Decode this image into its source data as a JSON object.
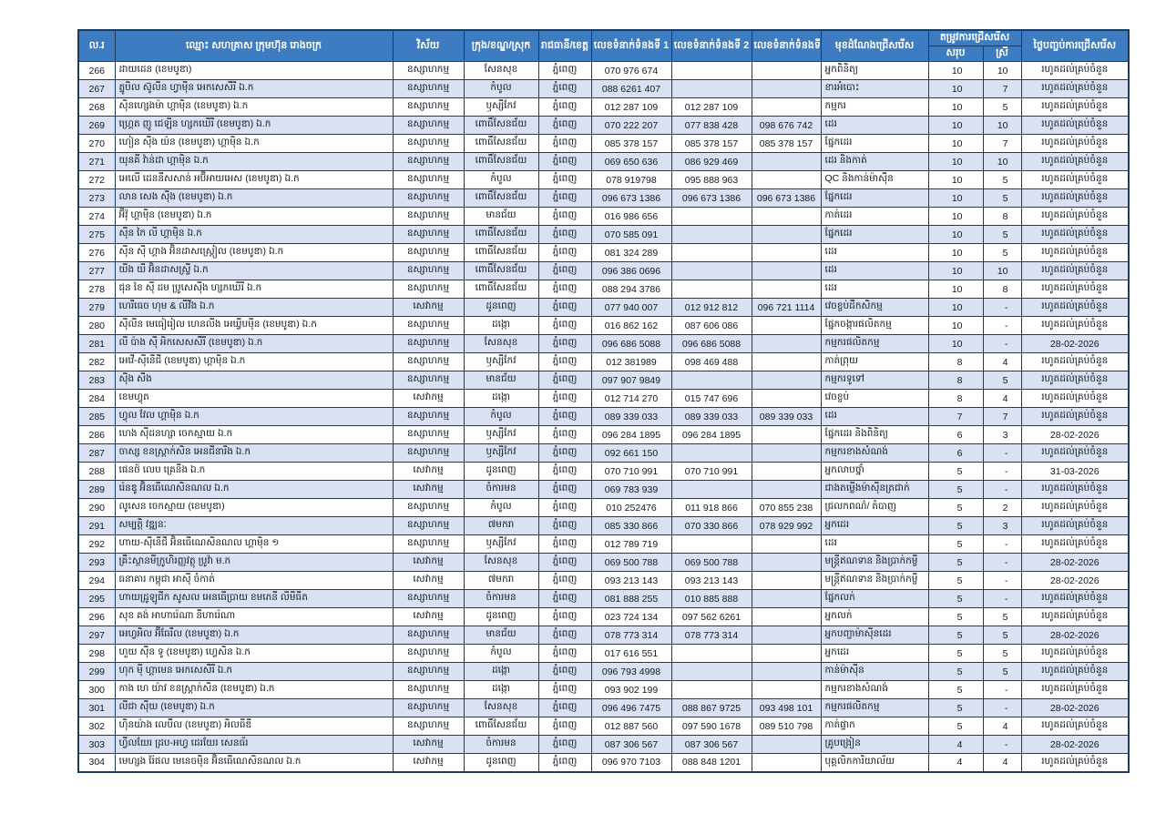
{
  "colors": {
    "header_bg": "#3E7CC1",
    "header_text": "#FFFFFF",
    "row_stripe": "#D9E1F2",
    "grid_border": "#1D3A5F",
    "body_text": "#111722"
  },
  "table": {
    "headers": {
      "no": "ល.រ",
      "name": "ឈ្មោះ សហគ្រាស ក្រុមហ៊ុន រោងចក្រ",
      "sector": "វិស័យ",
      "district": "ក្រុង/ខណ្ឌ/ស្រុក",
      "province": "រាជធានី/ខេត្ត",
      "phone1": "លេខទំនាក់ទំនងទី 1",
      "phone2": "លេខទំនាក់ទំនងទី 2",
      "phone3": "លេខទំនាក់ទំនងទី 3",
      "position": "មុខដំណែងជ្រើសរើស",
      "need_group": "តម្រូវការជ្រើសរើស",
      "need_total": "សរុប",
      "need_female": "ស្រី",
      "end_date": "ថ្ងៃបញ្ចប់ការជ្រើសរើស"
    },
    "row_keys": [
      "no",
      "name",
      "sector",
      "district",
      "province",
      "phone1",
      "phone2",
      "phone3",
      "position",
      "total",
      "female",
      "end_date"
    ],
    "rows": [
      {
        "no": "266",
        "name": "ដាយដេន (ខេមបូឌា)",
        "sector": "ឧស្សាហកម្ម",
        "district": "សែនសុខ",
        "province": "ភ្នំពេញ",
        "phone1": "070 976 674",
        "phone2": "",
        "phone3": "",
        "position": "អ្នកពិនិត្យ",
        "total": "10",
        "female": "10",
        "end_date": "រហូតដល់គ្រប់ចំនួន"
      },
      {
        "no": "267",
        "name": "ត្នូបិល ស៊ូលីន ហ្វាមុីន អេកសេសឺរី ឯ.ក",
        "sector": "ឧស្សាហកម្ម",
        "district": "កំបូល",
        "province": "ភ្នំពេញ",
        "phone1": "088 6261 407",
        "phone2": "",
        "phone3": "",
        "position": "ខារអំបោះ",
        "total": "10",
        "female": "7",
        "end_date": "រហូតដល់គ្រប់ចំនួន"
      },
      {
        "no": "268",
        "name": "ស៊ិនហ្សេងម៉ា ហ្គាម៉ិន (ខេមបូឌា) ឯ.ក",
        "sector": "ឧស្សាហកម្ម",
        "district": "ឫស្សីកែវ",
        "province": "ភ្នំពេញ",
        "phone1": "012 287 109",
        "phone2": "012 287 109",
        "phone3": "",
        "position": "កម្មករ",
        "total": "10",
        "female": "5",
        "end_date": "រហូតដល់គ្រប់ចំនួន"
      },
      {
        "no": "269",
        "name": "ហ្គ្រេត ញូ ជេឡីន ហ្សកឃើរី (ខេមបូឌា) ឯ.ក",
        "sector": "ឧស្សាហកម្ម",
        "district": "ពោធិ៍សែនជ័យ",
        "province": "ភ្នំពេញ",
        "phone1": "070 222 207",
        "phone2": "077 838 428",
        "phone3": "098 676 742",
        "position": "ដេរ",
        "total": "10",
        "female": "10",
        "end_date": "រហូតដល់គ្រប់ចំនួន"
      },
      {
        "no": "270",
        "name": "ហៀន ស៊ីង យ៉ន (ខេមបូឌា) ហ្គាម៉ិន ឯ.ក",
        "sector": "ឧស្សាហកម្ម",
        "district": "ពោធិ៍សែនជ័យ",
        "province": "ភ្នំពេញ",
        "phone1": "085 378 157",
        "phone2": "085 378 157",
        "phone3": "085 378 157",
        "position": "ផ្នែកដេរ",
        "total": "10",
        "female": "7",
        "end_date": "រហូតដល់គ្រប់ចំនួន"
      },
      {
        "no": "271",
        "name": "យុនគី វ៉ាន់ដា ហ្គាម៉ិន ឯ.ក",
        "sector": "ឧស្សាហកម្ម",
        "district": "ពោធិ៍សែនជ័យ",
        "province": "ភ្នំពេញ",
        "phone1": "069 650 636",
        "phone2": "086 929 469",
        "phone3": "",
        "position": "ដេរ និងកាត់",
        "total": "10",
        "female": "10",
        "end_date": "រហូតដល់គ្រប់ចំនួន"
      },
      {
        "no": "272",
        "name": "អេលើ ដេននីសសាន់ អប៊ីអាយអេស (ខេមបូឌា) ឯ.ក",
        "sector": "ឧស្សាហកម្ម",
        "district": "កំបូល",
        "province": "ភ្នំពេញ",
        "phone1": "078 919798",
        "phone2": "095 888 963",
        "phone3": "",
        "position": "QC និងកាន់ម៉ាស៊ីន",
        "total": "10",
        "female": "5",
        "end_date": "រហូតដល់គ្រប់ចំនួន"
      },
      {
        "no": "273",
        "name": "លាន សេង ស៊ីង (ខេមបូឌា) ឯ.ក",
        "sector": "ឧស្សាហកម្ម",
        "district": "ពោធិ៍សែនជ័យ",
        "province": "ភ្នំពេញ",
        "phone1": "096 673 1386",
        "phone2": "096 673 1386",
        "phone3": "096 673 1386",
        "position": "ផ្នែកដេរ",
        "total": "10",
        "female": "5",
        "end_date": "រហូតដល់គ្រប់ចំនួន"
      },
      {
        "no": "274",
        "name": "អ៊ីវ៉ុ ហ្គាម៉ិន (ខេមបូឌា) ឯ.ក",
        "sector": "ឧស្សាហកម្ម",
        "district": "មានជ័យ",
        "province": "ភ្នំពេញ",
        "phone1": "016 986 656",
        "phone2": "",
        "phone3": "",
        "position": "កាត់ដេរ",
        "total": "10",
        "female": "8",
        "end_date": "រហូតដល់គ្រប់ចំនួន"
      },
      {
        "no": "275",
        "name": "ស៊ីន កៃ លី ហ្គាម៉ិន ឯ.ក",
        "sector": "ឧស្សាហកម្ម",
        "district": "ពោធិ៍សែនជ័យ",
        "province": "ភ្នំពេញ",
        "phone1": "070 585 091",
        "phone2": "",
        "phone3": "",
        "position": "ផ្នែកដេរ",
        "total": "10",
        "female": "5",
        "end_date": "រហូតដល់គ្រប់ចំនួន"
      },
      {
        "no": "276",
        "name": "ស៊ីន ស៊ី ហ្គាង អ៊ិនដាសស្រ្តៀល (ខេមបូឌា) ឯ.ក",
        "sector": "ឧស្សាហកម្ម",
        "district": "ពោធិ៍សែនជ័យ",
        "province": "ភ្នំពេញ",
        "phone1": "081 324 289",
        "phone2": "",
        "phone3": "",
        "position": "ដេរ",
        "total": "10",
        "female": "5",
        "end_date": "រហូតដល់គ្រប់ចំនួន"
      },
      {
        "no": "277",
        "name": "យីង យី អ៊ិនដាសស្ទ្រី ឯ.ក",
        "sector": "ឧស្សាហកម្ម",
        "district": "ពោធិ៍សែនជ័យ",
        "province": "ភ្នំពេញ",
        "phone1": "096 386 0696",
        "phone2": "",
        "phone3": "",
        "position": "ដេរ",
        "total": "10",
        "female": "10",
        "end_date": "រហូតដល់គ្រប់ចំនួន"
      },
      {
        "no": "278",
        "name": "ជុន ខៃ ស៊ី ដម ប្រូសេស៊ីង ហ្សកឃើរី ឯ.ក",
        "sector": "ឧស្សាហកម្ម",
        "district": "ពោធិ៍សែនជ័យ",
        "province": "ភ្នំពេញ",
        "phone1": "088 294 3786",
        "phone2": "",
        "phone3": "",
        "position": "ដេរ",
        "total": "10",
        "female": "8",
        "end_date": "រហូតដល់គ្រប់ចំនួន"
      },
      {
        "no": "279",
        "name": "ហេរីធេច ហុម & លីវីង ឯ.ក",
        "sector": "សេវាកម្ម",
        "district": "ដូនពេញ",
        "province": "ភ្នំពេញ",
        "phone1": "077 940 007",
        "phone2": "012 912 812",
        "phone3": "096 721 1114",
        "position": "វេចខ្ចប់ដឹកសិកម្ម",
        "total": "10",
        "female": "-",
        "end_date": "រហូតដល់គ្រប់ចំនួន"
      },
      {
        "no": "280",
        "name": "ស៊ីលីន មេធៀរៀល ហេនលីង អេឃ្វីបមុីន (ខេមបូឌា) ឯ.ក",
        "sector": "ឧស្សាហកម្ម",
        "district": "ដង្កោ",
        "province": "ភ្នំពេញ",
        "phone1": "016 862 162",
        "phone2": "087 606 086",
        "phone3": "",
        "position": "ផ្នែកចង្ការផលិតកម្ម",
        "total": "10",
        "female": "-",
        "end_date": "រហូតដល់គ្រប់ចំនួន"
      },
      {
        "no": "281",
        "name": "លី ប៉ាង ស៊ី អិកសេសសឺរី (ខេមបូឌា) ឯ.ក",
        "sector": "ឧស្សាហកម្ម",
        "district": "សែនសុខ",
        "province": "ភ្នំពេញ",
        "phone1": "096 686 5088",
        "phone2": "096 686 5088",
        "phone3": "",
        "position": "កម្មករផលិតកម្ម",
        "total": "10",
        "female": "-",
        "end_date": "28-02-2026"
      },
      {
        "no": "282",
        "name": "អេវើ-ស៊ីនើជី (ខេមបូឌា) ហ្គាម៉ិន ឯ.ក",
        "sector": "ឧស្សាហកម្ម",
        "district": "ឫស្សីកែវ",
        "province": "ភ្នំពេញ",
        "phone1": "012 381989",
        "phone2": "098 469 488",
        "phone3": "",
        "position": "កាត់ព្រុយ",
        "total": "8",
        "female": "4",
        "end_date": "រហូតដល់គ្រប់ចំនួន"
      },
      {
        "no": "283",
        "name": "ស៊ីង សីង",
        "sector": "ឧស្សាហកម្ម",
        "district": "មានជ័យ",
        "province": "ភ្នំពេញ",
        "phone1": "097 907 9849",
        "phone2": "",
        "phone3": "",
        "position": "កម្មករទូទៅ",
        "total": "8",
        "female": "5",
        "end_date": "រហូតដល់គ្រប់ចំនួន"
      },
      {
        "no": "284",
        "name": "ខេមហ្វុត",
        "sector": "សេវាកម្ម",
        "district": "ដង្កោ",
        "province": "ភ្នំពេញ",
        "phone1": "012 714 270",
        "phone2": "015 747 696",
        "phone3": "",
        "position": "វេចខ្ចប់",
        "total": "8",
        "female": "4",
        "end_date": "រហូតដល់គ្រប់ចំនួន"
      },
      {
        "no": "285",
        "name": "ហ្វុល វែល ហ្គាម៉ិន ឯ.ក",
        "sector": "ឧស្សាហកម្ម",
        "district": "កំបូល",
        "province": "ភ្នំពេញ",
        "phone1": "089 339 033",
        "phone2": "089 339 033",
        "phone3": "089 339 033",
        "position": "ដេរ",
        "total": "7",
        "female": "7",
        "end_date": "រហូតដល់គ្រប់ចំនួន"
      },
      {
        "no": "286",
        "name": "ហេង ស៊ីដនហ្សា ចេកស្មាយ ឯ.ក",
        "sector": "ឧស្សាហកម្ម",
        "district": "ឫស្សីកែវ",
        "province": "ភ្នំពេញ",
        "phone1": "096 284 1895",
        "phone2": "096 284 1895",
        "phone3": "",
        "position": "ផ្នែកដេរ និងពិនិត្យ",
        "total": "6",
        "female": "3",
        "end_date": "28-02-2026"
      },
      {
        "no": "287",
        "name": "ចាស្ស ខនស្ត្រាក់សិន អេនជីនារីង ឯ.ក",
        "sector": "ឧស្សាហកម្ម",
        "district": "ឫស្សីកែវ",
        "province": "ភ្នំពេញ",
        "phone1": "092 661 150",
        "phone2": "",
        "phone3": "",
        "position": "កម្មករខាងសំណង់",
        "total": "6",
        "female": "-",
        "end_date": "រហូតដល់គ្រប់ចំនួន"
      },
      {
        "no": "288",
        "name": "ផេនថ៍ លេប គ្រេនីង ឯ.ក",
        "sector": "សេវាកម្ម",
        "district": "ដូនពេញ",
        "province": "ភ្នំពេញ",
        "phone1": "070 710 991",
        "phone2": "070 710 991",
        "phone3": "",
        "position": "អ្នកលាបថ្នាំ",
        "total": "5",
        "female": "-",
        "end_date": "31-03-2026"
      },
      {
        "no": "289",
        "name": "រ៉េនឌូ អ៊ិនធើណេសិនណល ឯ.ក",
        "sector": "សេវាកម្ម",
        "district": "ចំការមន",
        "province": "ភ្នំពេញ",
        "phone1": "069 783 939",
        "phone2": "",
        "phone3": "",
        "position": "ជាងតម្លើងម៉ាស៊ីនត្រជាក់",
        "total": "5",
        "female": "-",
        "end_date": "រហូតដល់គ្រប់ចំនួន"
      },
      {
        "no": "290",
        "name": "លូសេន ចេកស្មាយ (ខេមបូឌា)",
        "sector": "ឧស្សាហកម្ម",
        "district": "កំបូល",
        "province": "ភ្នំពេញ",
        "phone1": "010 252476",
        "phone2": "011 918 866",
        "phone3": "070 855 238",
        "position": "ជ្រលកពណ៌/ តំបាញ",
        "total": "5",
        "female": "2",
        "end_date": "រហូតដល់គ្រប់ចំនួន"
      },
      {
        "no": "291",
        "name": "សម្បត្តិ វឌ្ឍនៈ",
        "sector": "ឧស្សាហកម្ម",
        "district": "៧មករា",
        "province": "ភ្នំពេញ",
        "phone1": "085 330 866",
        "phone2": "070 330 866",
        "phone3": "078 929 992",
        "position": "អ្នកដេរ",
        "total": "5",
        "female": "3",
        "end_date": "រហូតដល់គ្រប់ចំនួន"
      },
      {
        "no": "292",
        "name": "ហាយ-ស៊ីនើជី អ៊ិនធើណេសិនណល ហ្គាម៉ិន ១",
        "sector": "ឧស្សាហកម្ម",
        "district": "ឫស្សីកែវ",
        "province": "ភ្នំពេញ",
        "phone1": "012 789 719",
        "phone2": "",
        "phone3": "",
        "position": "ដេរ",
        "total": "5",
        "female": "-",
        "end_date": "រហូតដល់គ្រប់ចំនួន"
      },
      {
        "no": "293",
        "name": "គ្រឹះស្ថានមីក្រូហិរញ្ញវត្ថុ ប្រូវ៉ា ម.ក",
        "sector": "សេវាកម្ម",
        "district": "សែនសុខ",
        "province": "ភ្នំពេញ",
        "phone1": "069 500 788",
        "phone2": "069 500 788",
        "phone3": "",
        "position": "មន្ត្រីឥណទាន និងប្រាក់កម្ចី",
        "total": "5",
        "female": "-",
        "end_date": "28-02-2026"
      },
      {
        "no": "294",
        "name": "ធនាគារ កម្ពុជា អាស៊ី ចំកាត់",
        "sector": "សេវាកម្ម",
        "district": "៧មករា",
        "province": "ភ្នំពេញ",
        "phone1": "093 213 143",
        "phone2": "093 213 143",
        "phone3": "",
        "position": "មន្ត្រីឥណទាន និងប្រាក់កម្ចី",
        "total": "5",
        "female": "-",
        "end_date": "28-02-2026"
      },
      {
        "no": "295",
        "name": "ហាយដ្រូឡូជីក សូសល អេនធើប្រាយ ខមភេនី លីមីធីត",
        "sector": "ឧស្សាហកម្ម",
        "district": "ចំការមន",
        "province": "ភ្នំពេញ",
        "phone1": "081 888 255",
        "phone2": "010 885 888",
        "phone3": "",
        "position": "ផ្នែកលក់",
        "total": "5",
        "female": "-",
        "end_date": "រហូតដល់គ្រប់ចំនួន"
      },
      {
        "no": "296",
        "name": "សុខ គង់ អាហារ៉េណា នីហារ៉េណា",
        "sector": "សេវាកម្ម",
        "district": "ដូនពេញ",
        "province": "ភ្នំពេញ",
        "phone1": "023 724 134",
        "phone2": "097 562 6261",
        "phone3": "",
        "position": "អ្នកលក់",
        "total": "5",
        "female": "5",
        "end_date": "រហូតដល់គ្រប់ចំនួន"
      },
      {
        "no": "297",
        "name": "អេហ្វអិល អ៊ីធែរឹល (ខេមបូឌា) ឯ.ក",
        "sector": "ឧស្សាហកម្ម",
        "district": "មានជ័យ",
        "province": "ភ្នំពេញ",
        "phone1": "078 773 314",
        "phone2": "078 773 314",
        "phone3": "",
        "position": "អ្នកបញ្ជាម៉ាស៊ីនដេរ",
        "total": "5",
        "female": "5",
        "end_date": "28-02-2026"
      },
      {
        "no": "298",
        "name": "ហួយ ស៊ីន ទូ (ខេមបូឌា) ហ្វេសិន ឯ.ក",
        "sector": "ឧស្សាហកម្ម",
        "district": "កំបូល",
        "province": "ភ្នំពេញ",
        "phone1": "017 616 551",
        "phone2": "",
        "phone3": "",
        "position": "អ្នកដេរ",
        "total": "5",
        "female": "5",
        "end_date": "រហូតដល់គ្រប់ចំនួន"
      },
      {
        "no": "299",
        "name": "ហុក ម៉ី ហ្គាមេន អេកសេសឺរី ឯ.ក",
        "sector": "ឧស្សាហកម្ម",
        "district": "ដង្កោ",
        "province": "ភ្នំពេញ",
        "phone1": "096 793 4998",
        "phone2": "",
        "phone3": "",
        "position": "កាន់ម៉ាស៊ីន",
        "total": "5",
        "female": "5",
        "end_date": "រហូតដល់គ្រប់ចំនួន"
      },
      {
        "no": "300",
        "name": "កាង ហេ យ៉ាវ ខនស្ត្រាក់សិន (ខេមបូឌា) ឯ.ក",
        "sector": "ឧស្សាហកម្ម",
        "district": "ដង្កោ",
        "province": "ភ្នំពេញ",
        "phone1": "093 902 199",
        "phone2": "",
        "phone3": "",
        "position": "កម្មករខាងសំណង់",
        "total": "5",
        "female": "-",
        "end_date": "រហូតដល់គ្រប់ចំនួន"
      },
      {
        "no": "301",
        "name": "លីជា ស៊ីយ (ខេមបូឌា) ឯ.ក",
        "sector": "ឧស្សាហកម្ម",
        "district": "សែនសុខ",
        "province": "ភ្នំពេញ",
        "phone1": "096 496 7475",
        "phone2": "088 867 9725",
        "phone3": "093 498 101",
        "position": "កម្មករផលិតកម្ម",
        "total": "5",
        "female": "-",
        "end_date": "28-02-2026"
      },
      {
        "no": "302",
        "name": "ហ៊ិនយ៉ាង លេបឹល (ខេមបូឌា) អិលធីឌី",
        "sector": "ឧស្សាហកម្ម",
        "district": "ពោធិ៍សែនជ័យ",
        "province": "ភ្នំពេញ",
        "phone1": "012 887 560",
        "phone2": "097 590 1678",
        "phone3": "089 510 798",
        "position": "កាត់ផ្ទាក",
        "total": "5",
        "female": "4",
        "end_date": "រហូតដល់គ្រប់ចំនួន"
      },
      {
        "no": "303",
        "name": "ហ្វីលយែរ ដ្រប-អហ្វ ដេរយែរ សេនធ័រ",
        "sector": "សេវាកម្ម",
        "district": "ចំការមន",
        "province": "ភ្នំពេញ",
        "phone1": "087 306 567",
        "phone2": "087 306 567",
        "phone3": "",
        "position": "គ្រូបង្រៀន",
        "total": "4",
        "female": "-",
        "end_date": "28-02-2026"
      },
      {
        "no": "304",
        "name": "មេហ្សង រ៉ៃផល មេនេចមុិន អ៊ិនធើណេសិនណល ឯ.ក",
        "sector": "សេវាកម្ម",
        "district": "ដូនពេញ",
        "province": "ភ្នំពេញ",
        "phone1": "096 970 7103",
        "phone2": "088 848 1201",
        "phone3": "",
        "position": "បុគ្គលិកការិយាល័យ",
        "total": "4",
        "female": "4",
        "end_date": "រហូតដល់គ្រប់ចំនួន"
      }
    ]
  }
}
